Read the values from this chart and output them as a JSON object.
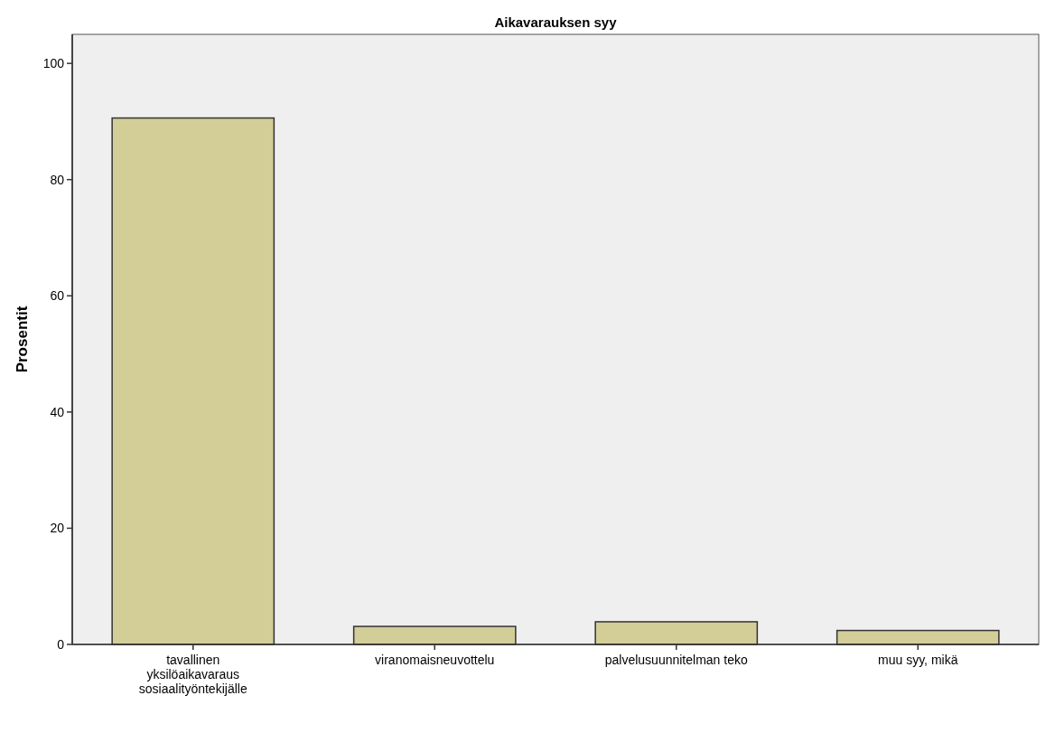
{
  "chart_data": {
    "type": "bar",
    "title": "Aikavarauksen syy",
    "ylabel": "Prosentit",
    "categories": [
      "tavallinen yksilöaikavaraus sosiaalityöntekijälle",
      "viranomaisneuvottelu",
      "palvelusuunnitelman teko",
      "muu syy, mikä"
    ],
    "values": [
      90.6,
      3.1,
      3.9,
      2.4
    ],
    "color": "#d3ce97",
    "ylim": [
      0,
      105
    ],
    "yticks": [
      0,
      20,
      40,
      60,
      80,
      100
    ],
    "grid": false
  }
}
